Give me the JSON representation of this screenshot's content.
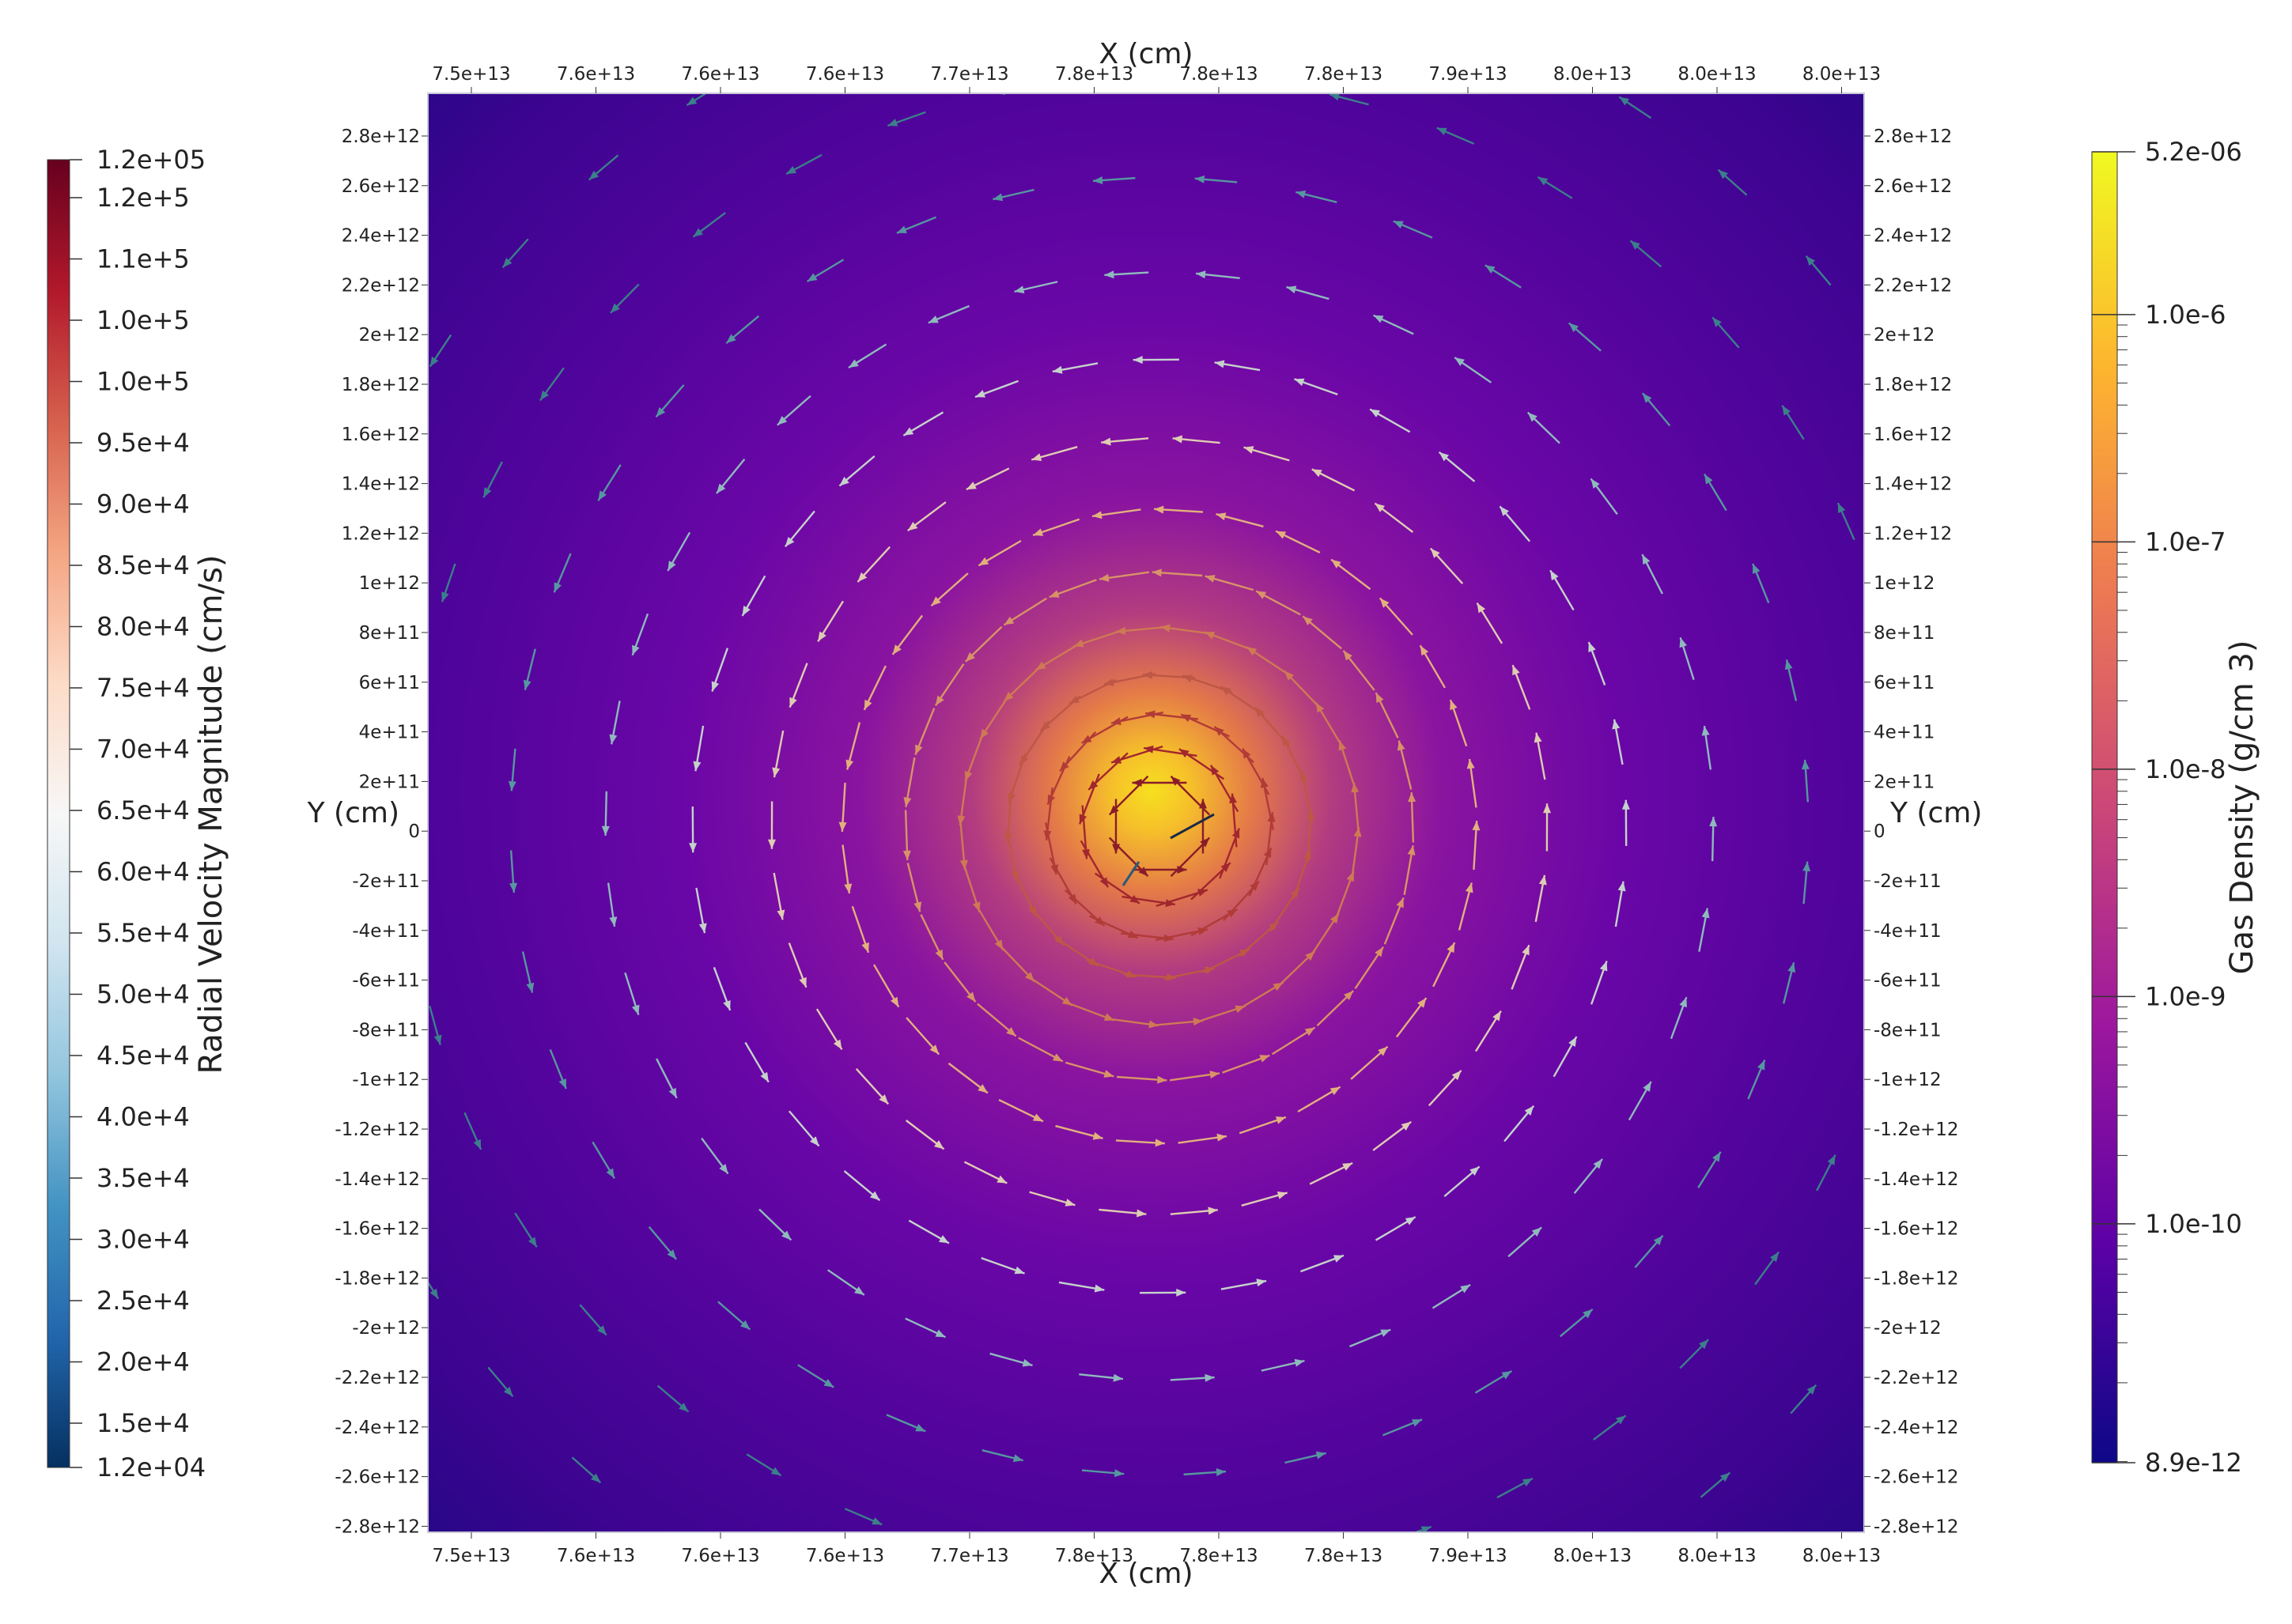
{
  "chart_data": {
    "type": "vector_field",
    "x_axis": {
      "label": "X (cm)",
      "tick_labels": [
        "7.5e+13",
        "7.6e+13",
        "7.6e+13",
        "7.6e+13",
        "7.7e+13",
        "7.8e+13",
        "7.8e+13",
        "7.8e+13",
        "7.9e+13",
        "8.0e+13",
        "8.0e+13",
        "8.0e+13"
      ],
      "range": [
        74700000000000,
        80300000000000
      ]
    },
    "y_axis": {
      "label": "Y (cm)",
      "tick_labels": [
        "2.8e+12",
        "2.6e+12",
        "2.4e+12",
        "2.2e+12",
        "2e+12",
        "1.8e+12",
        "1.6e+12",
        "1.4e+12",
        "1.2e+12",
        "1e+12",
        "8e+11",
        "6e+11",
        "4e+11",
        "2e+11",
        "0",
        "-2e+11",
        "-4e+11",
        "-6e+11",
        "-8e+11",
        "-1e+12",
        "-1.2e+12",
        "-1.4e+12",
        "-1.6e+12",
        "-1.8e+12",
        "-2e+12",
        "-2.2e+12",
        "-2.4e+12",
        "-2.6e+12",
        "-2.8e+12"
      ],
      "range": [
        -2900000000000,
        2900000000000
      ]
    },
    "background_field": {
      "name": "Gas Density (g/cm 3)",
      "colormap": "plasma",
      "scale": "log",
      "range": [
        8.9e-12,
        5.2e-06
      ],
      "peak_location": [
        77700000000000,
        0
      ]
    },
    "vector_field": {
      "name": "Radial Velocity Magnitude (cm/s)",
      "colormap": "RdBu_r",
      "range": [
        12000,
        120000
      ],
      "pattern": "counter-clockwise rotation around density peak"
    },
    "colorbar_velocity": {
      "title": "Radial Velocity Magnitude (cm/s)",
      "ticks": [
        "1.2e+05",
        "1.2e+5",
        "1.1e+5",
        "1.0e+5",
        "1.0e+5",
        "9.5e+4",
        "9.0e+4",
        "8.5e+4",
        "8.0e+4",
        "7.5e+4",
        "7.0e+4",
        "6.5e+4",
        "6.0e+4",
        "5.5e+4",
        "5.0e+4",
        "4.5e+4",
        "4.0e+4",
        "3.5e+4",
        "3.0e+4",
        "2.5e+4",
        "2.0e+4",
        "1.5e+4",
        "1.2e+04"
      ],
      "colors": [
        "#67001f",
        "#b2182b",
        "#d6604d",
        "#f4a582",
        "#fddbc7",
        "#f7f7f7",
        "#d1e5f0",
        "#92c5de",
        "#4393c3",
        "#2166ac",
        "#053061"
      ]
    },
    "colorbar_density": {
      "title": "Gas Density (g/cm 3)",
      "ticks": [
        "5.2e-06",
        "1.0e-6",
        "1.0e-7",
        "1.0e-8",
        "1.0e-9",
        "1.0e-10",
        "8.9e-12"
      ],
      "tick_values": [
        5.2e-06,
        1e-06,
        1e-07,
        1e-08,
        1e-09,
        1e-10,
        8.9e-12
      ],
      "colors": [
        "#f0f921",
        "#fdb42f",
        "#ed7953",
        "#cc4778",
        "#9c179e",
        "#5c01a6",
        "#0d0887"
      ]
    }
  }
}
